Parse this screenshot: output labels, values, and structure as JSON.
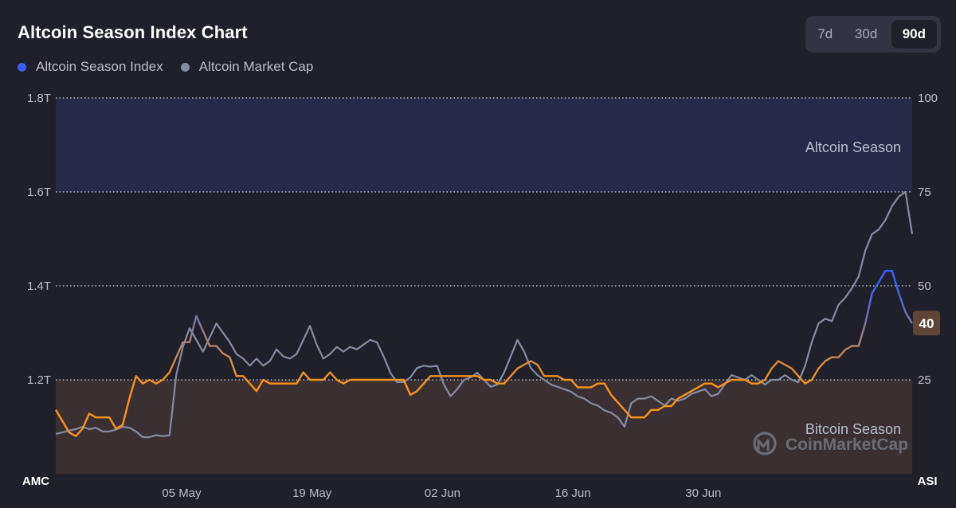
{
  "header": {
    "title": "Altcoin Season Index Chart"
  },
  "legend": [
    {
      "label": "Altcoin Season Index",
      "color": "#3861fb"
    },
    {
      "label": "Altcoin Market Cap",
      "color": "#858ca2"
    }
  ],
  "range_selector": {
    "options": [
      "7d",
      "30d",
      "90d"
    ],
    "selected": "90d"
  },
  "zones": {
    "top": "Altcoin Season",
    "bottom": "Bitcoin Season"
  },
  "watermark": "CoinMarketCap",
  "chart_data": {
    "type": "line",
    "x_ticks": [
      "05 May",
      "19 May",
      "02 Jun",
      "16 Jun",
      "30 Jun"
    ],
    "left_axis": {
      "label": "AMC",
      "ticks": [
        "1.8T",
        "1.6T",
        "1.4T",
        "1.2T"
      ],
      "ylim": [
        1.0,
        1.8
      ]
    },
    "right_axis": {
      "label": "ASI",
      "ticks": [
        "100",
        "75",
        "50",
        "25"
      ],
      "ylim": [
        0,
        100
      ]
    },
    "current_value": "40",
    "grid": true,
    "legend_position": "top-left",
    "colors": {
      "index_line": "#f7931a",
      "index_line_high": "#3861fb",
      "marketcap_line": "#858ca2",
      "altcoin_zone": "#262a48",
      "bitcoin_zone": "#3a3031"
    },
    "series": [
      {
        "name": "Altcoin Season Index",
        "axis": "right",
        "values": [
          17,
          14,
          11,
          10,
          12,
          16,
          15,
          15,
          15,
          12,
          13,
          20,
          26,
          24,
          25,
          24,
          25,
          27,
          31,
          35,
          35,
          42,
          38,
          34,
          34,
          32,
          31,
          26,
          26,
          24,
          22,
          25,
          24,
          24,
          24,
          24,
          24,
          27,
          25,
          25,
          25,
          27,
          25,
          24,
          25,
          25,
          25,
          25,
          25,
          25,
          25,
          25,
          25,
          21,
          22,
          24,
          26,
          26,
          26,
          26,
          26,
          26,
          26,
          26,
          25,
          25,
          24,
          24,
          26,
          28,
          29,
          30,
          29,
          26,
          26,
          26,
          25,
          25,
          23,
          23,
          23,
          24,
          24,
          21,
          19,
          17,
          15,
          15,
          15,
          17,
          17,
          18,
          18,
          20,
          21,
          22,
          23,
          24,
          24,
          23,
          24,
          25,
          25,
          25,
          24,
          24,
          25,
          28,
          30,
          29,
          28,
          26,
          24,
          25,
          28,
          30,
          31,
          31,
          33,
          34,
          34,
          40,
          48,
          51,
          54,
          54,
          48,
          43,
          40
        ]
      },
      {
        "name": "Altcoin Market Cap",
        "axis": "left",
        "values": [
          1.085,
          1.088,
          1.092,
          1.095,
          1.1,
          1.095,
          1.098,
          1.09,
          1.09,
          1.094,
          1.1,
          1.098,
          1.09,
          1.078,
          1.078,
          1.082,
          1.08,
          1.082,
          1.21,
          1.27,
          1.31,
          1.285,
          1.26,
          1.29,
          1.32,
          1.3,
          1.28,
          1.255,
          1.245,
          1.23,
          1.245,
          1.23,
          1.24,
          1.265,
          1.25,
          1.245,
          1.255,
          1.285,
          1.315,
          1.275,
          1.245,
          1.255,
          1.27,
          1.26,
          1.27,
          1.265,
          1.275,
          1.285,
          1.28,
          1.25,
          1.215,
          1.195,
          1.195,
          1.205,
          1.225,
          1.23,
          1.228,
          1.23,
          1.19,
          1.165,
          1.18,
          1.2,
          1.205,
          1.215,
          1.2,
          1.185,
          1.19,
          1.215,
          1.25,
          1.285,
          1.26,
          1.225,
          1.21,
          1.2,
          1.19,
          1.185,
          1.18,
          1.175,
          1.165,
          1.16,
          1.15,
          1.145,
          1.135,
          1.13,
          1.12,
          1.1,
          1.15,
          1.16,
          1.16,
          1.165,
          1.155,
          1.145,
          1.16,
          1.155,
          1.16,
          1.17,
          1.175,
          1.18,
          1.165,
          1.17,
          1.19,
          1.21,
          1.205,
          1.2,
          1.21,
          1.2,
          1.19,
          1.2,
          1.2,
          1.21,
          1.2,
          1.195,
          1.23,
          1.28,
          1.32,
          1.33,
          1.325,
          1.36,
          1.375,
          1.395,
          1.42,
          1.475,
          1.51,
          1.52,
          1.54,
          1.57,
          1.59,
          1.6,
          1.51
        ]
      }
    ]
  }
}
